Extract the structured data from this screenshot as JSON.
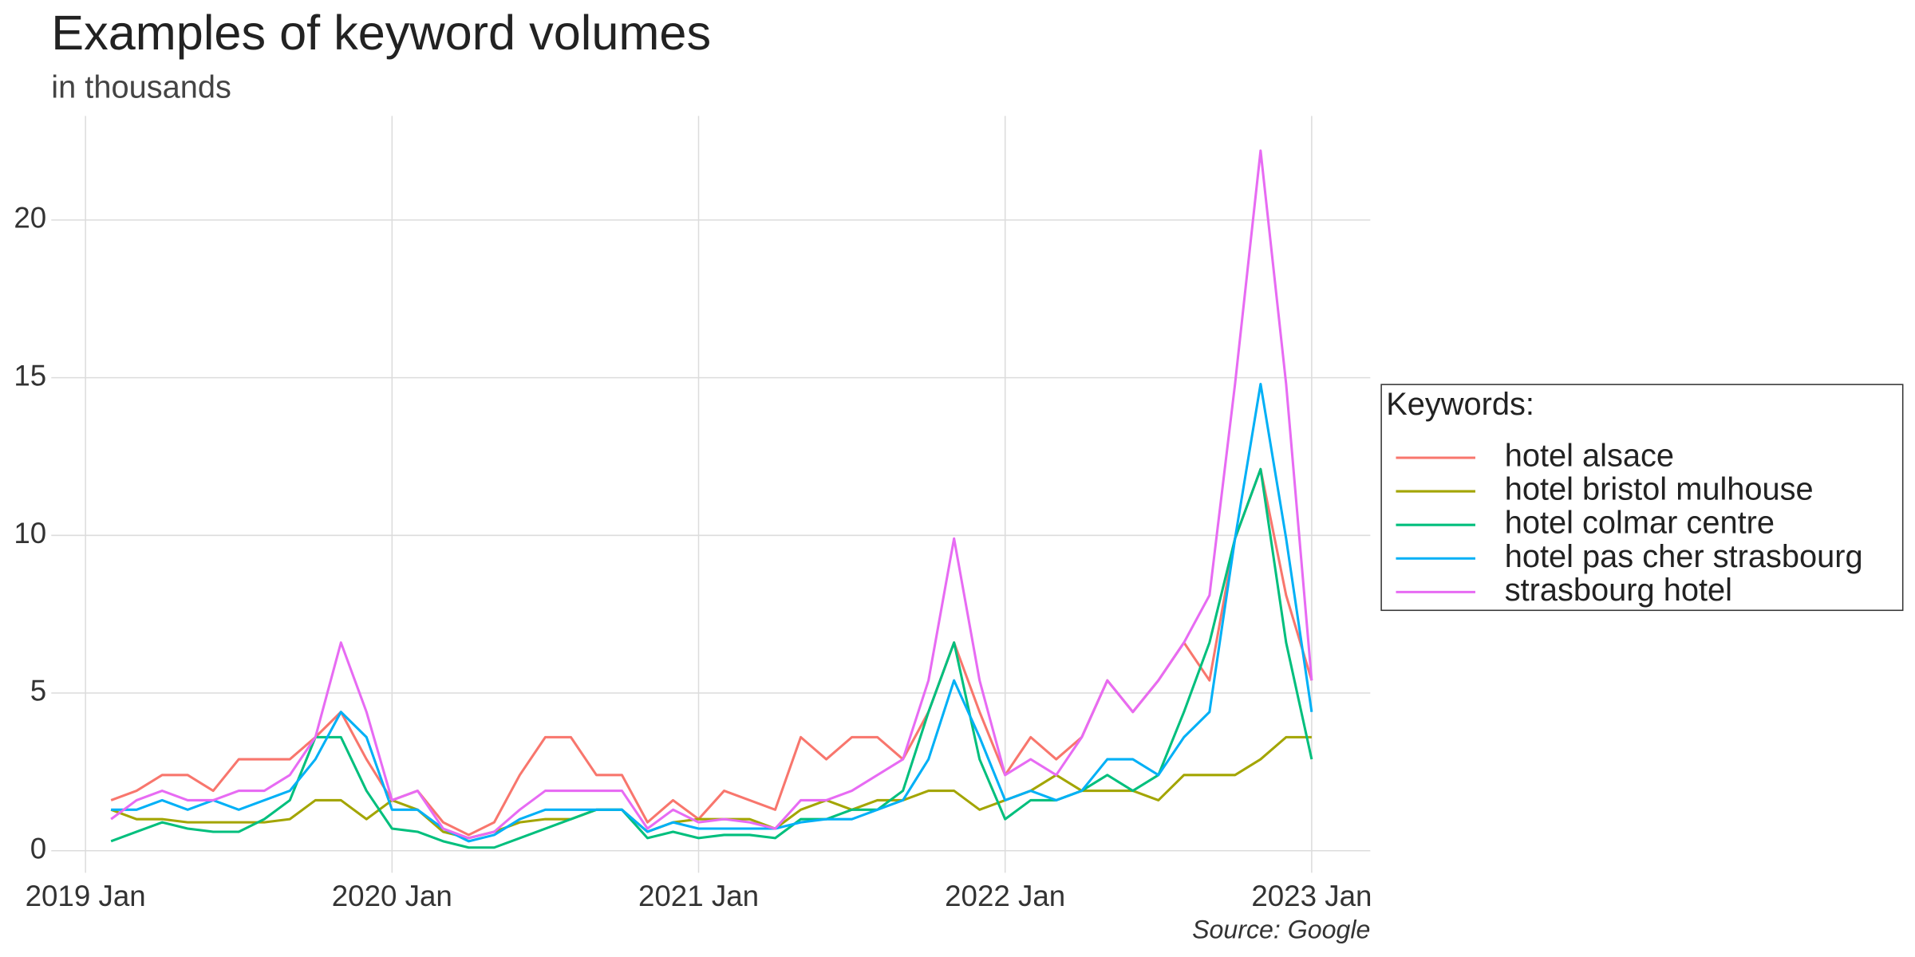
{
  "chart_data": {
    "type": "line",
    "title": "Examples of keyword volumes",
    "subtitle": "in thousands",
    "source": "Source: Google",
    "legend_title": "Keywords:",
    "legend": "right",
    "grid": true,
    "x": [
      "2019-02",
      "2019-03",
      "2019-04",
      "2019-05",
      "2019-06",
      "2019-07",
      "2019-08",
      "2019-09",
      "2019-10",
      "2019-11",
      "2019-12",
      "2020-01",
      "2020-02",
      "2020-03",
      "2020-04",
      "2020-05",
      "2020-06",
      "2020-07",
      "2020-08",
      "2020-09",
      "2020-10",
      "2020-11",
      "2020-12",
      "2021-01",
      "2021-02",
      "2021-03",
      "2021-04",
      "2021-05",
      "2021-06",
      "2021-07",
      "2021-08",
      "2021-09",
      "2021-10",
      "2021-11",
      "2021-12",
      "2022-01",
      "2022-02",
      "2022-03",
      "2022-04",
      "2022-05",
      "2022-06",
      "2022-07",
      "2022-08",
      "2022-09",
      "2022-10",
      "2022-11",
      "2022-12",
      "2023-01"
    ],
    "xticks": [
      {
        "value": "2019-01",
        "label": "2019 Jan"
      },
      {
        "value": "2020-01",
        "label": "2020 Jan"
      },
      {
        "value": "2021-01",
        "label": "2021 Jan"
      },
      {
        "value": "2022-01",
        "label": "2022 Jan"
      },
      {
        "value": "2023-01",
        "label": "2023 Jan"
      }
    ],
    "ylim": [
      -0.7,
      23.3
    ],
    "yticks": [
      0,
      5,
      10,
      15,
      20
    ],
    "series": [
      {
        "name": "hotel alsace",
        "color": "#F8766D",
        "values": [
          1.6,
          1.9,
          2.4,
          2.4,
          1.9,
          2.9,
          2.9,
          2.9,
          3.6,
          4.4,
          2.9,
          1.6,
          1.9,
          0.9,
          0.5,
          0.9,
          2.4,
          3.6,
          3.6,
          2.4,
          2.4,
          0.9,
          1.6,
          1.0,
          1.9,
          1.6,
          1.3,
          3.6,
          2.9,
          3.6,
          3.6,
          2.9,
          4.4,
          6.6,
          4.4,
          2.4,
          3.6,
          2.9,
          3.6,
          5.4,
          4.4,
          5.4,
          6.6,
          5.4,
          9.9,
          12.1,
          8.1,
          5.4
        ]
      },
      {
        "name": "hotel bristol mulhouse",
        "color": "#A3A500",
        "values": [
          1.3,
          1.0,
          1.0,
          0.9,
          0.9,
          0.9,
          0.9,
          1.0,
          1.6,
          1.6,
          1.0,
          1.6,
          1.3,
          0.6,
          0.4,
          0.6,
          0.9,
          1.0,
          1.0,
          1.3,
          1.3,
          0.6,
          0.9,
          1.0,
          1.0,
          1.0,
          0.7,
          1.3,
          1.6,
          1.3,
          1.6,
          1.6,
          1.9,
          1.9,
          1.3,
          1.6,
          1.9,
          2.4,
          1.9,
          1.9,
          1.9,
          1.6,
          2.4,
          2.4,
          2.4,
          2.9,
          3.6,
          3.6
        ]
      },
      {
        "name": "hotel colmar centre",
        "color": "#00BF7D",
        "values": [
          0.3,
          0.6,
          0.9,
          0.7,
          0.6,
          0.6,
          1.0,
          1.6,
          3.6,
          3.6,
          1.9,
          0.7,
          0.6,
          0.3,
          0.1,
          0.1,
          0.4,
          0.7,
          1.0,
          1.3,
          1.3,
          0.4,
          0.6,
          0.4,
          0.5,
          0.5,
          0.4,
          1.0,
          1.0,
          1.3,
          1.3,
          1.9,
          4.4,
          6.6,
          2.9,
          1.0,
          1.6,
          1.6,
          1.9,
          2.4,
          1.9,
          2.4,
          4.4,
          6.6,
          9.9,
          12.1,
          6.6,
          2.9
        ]
      },
      {
        "name": "hotel pas cher strasbourg",
        "color": "#00B0F6",
        "values": [
          1.3,
          1.3,
          1.6,
          1.3,
          1.6,
          1.3,
          1.6,
          1.9,
          2.9,
          4.4,
          3.6,
          1.3,
          1.3,
          0.7,
          0.3,
          0.5,
          1.0,
          1.3,
          1.3,
          1.3,
          1.3,
          0.6,
          0.9,
          0.7,
          0.7,
          0.7,
          0.7,
          0.9,
          1.0,
          1.0,
          1.3,
          1.6,
          2.9,
          5.4,
          3.6,
          1.6,
          1.9,
          1.6,
          1.9,
          2.9,
          2.9,
          2.4,
          3.6,
          4.4,
          9.9,
          14.8,
          9.9,
          4.4
        ]
      },
      {
        "name": "strasbourg hotel",
        "color": "#E76BF3",
        "values": [
          1.0,
          1.6,
          1.9,
          1.6,
          1.6,
          1.9,
          1.9,
          2.4,
          3.6,
          6.6,
          4.4,
          1.6,
          1.9,
          0.7,
          0.4,
          0.6,
          1.3,
          1.9,
          1.9,
          1.9,
          1.9,
          0.7,
          1.3,
          0.9,
          1.0,
          0.9,
          0.7,
          1.6,
          1.6,
          1.9,
          2.4,
          2.9,
          5.4,
          9.9,
          5.4,
          2.4,
          2.9,
          2.4,
          3.6,
          5.4,
          4.4,
          5.4,
          6.6,
          8.1,
          14.8,
          22.2,
          14.8,
          5.4
        ]
      }
    ]
  }
}
